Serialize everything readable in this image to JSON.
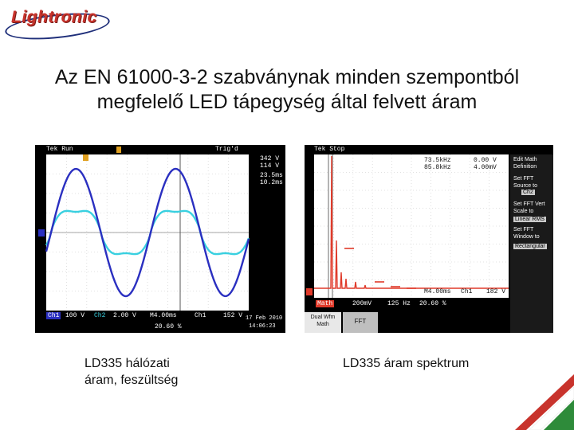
{
  "logo": {
    "text": "Lightronic"
  },
  "slide": {
    "title_line1": "Az EN 61000-3-2 szabványnak minden szempontból",
    "title_line2": "megfelelő LED tápegység által felvett áram"
  },
  "left_scope": {
    "status": "Tek Run",
    "trigger": "Trig'd",
    "cursor1": "342 V",
    "cursor2": "114 V",
    "time1": "23.5ms",
    "time2": "10.2ms",
    "ch1_label": "Ch1",
    "ch1_scale": "100 V",
    "ch2_label": "Ch2",
    "ch2_scale": "2.00 V",
    "timebase": "M4.00ms",
    "trig_src": "Ch1",
    "trig_level": "152 V",
    "percent": "20.60 %",
    "date": "17 Feb 2010",
    "time": "14:06:23",
    "colors": {
      "ch1": "#2a2fc0",
      "ch2": "#39d0e0"
    }
  },
  "right_scope": {
    "status": "Tek Stop",
    "freq1": "73.5kHz",
    "freq2": "85.8kHz",
    "val1": "0.00 V",
    "val2": "4.00mV",
    "math_label": "Math",
    "math_scale": "200mV",
    "freq_scale": "125 Hz",
    "percent": "20.60 %",
    "timebase": "M4.00ms",
    "trig_src": "Ch1",
    "trig_level": "182 V",
    "menu": {
      "edit_math": "Edit Math Definition",
      "set_fft_source": "Set FFT Source to",
      "source_value": "Ch2",
      "set_fft_vert": "Set FFT Vert Scale to",
      "vert_value": "Linear RMS",
      "set_fft_window": "Set FFT Window to",
      "window_value": "Rectangular"
    },
    "buttons": {
      "dual": "Dual Wfm Math",
      "fft": "FFT"
    },
    "colors": {
      "math": "#e03a2a"
    }
  },
  "captions": {
    "left_line1": "LD335 hálózati",
    "left_line2": "áram, feszültség",
    "right": "LD335 áram spektrum"
  }
}
